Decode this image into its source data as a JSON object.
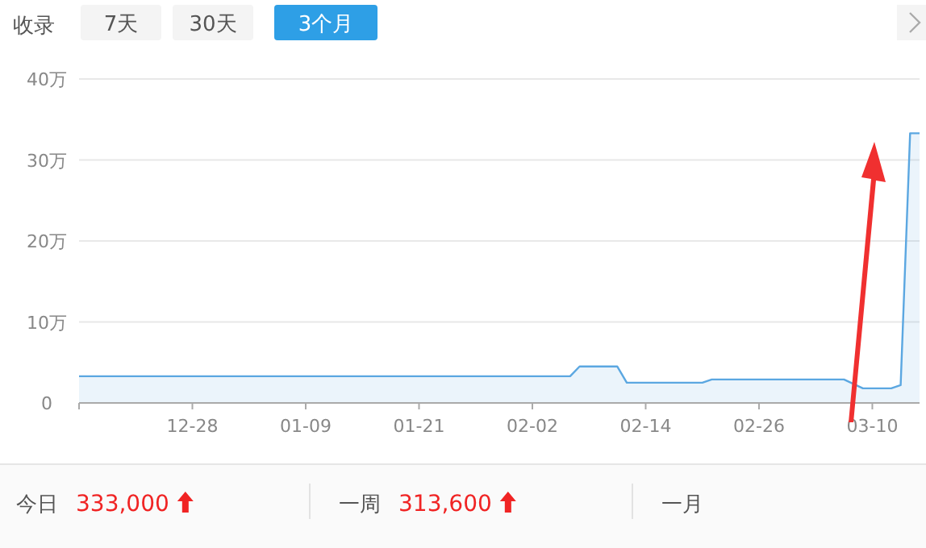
{
  "chart_data": {
    "type": "area",
    "categories": [
      null,
      null,
      null,
      null,
      null,
      null,
      null,
      null,
      null,
      null,
      null,
      null,
      "12-28",
      null,
      null,
      null,
      null,
      null,
      null,
      null,
      null,
      null,
      null,
      null,
      "01-09",
      null,
      null,
      null,
      null,
      null,
      null,
      null,
      null,
      null,
      null,
      null,
      "01-21",
      null,
      null,
      null,
      null,
      null,
      null,
      null,
      null,
      null,
      null,
      null,
      "02-02",
      null,
      null,
      null,
      null,
      null,
      null,
      null,
      null,
      null,
      null,
      null,
      "02-14",
      null,
      null,
      null,
      null,
      null,
      null,
      null,
      null,
      null,
      null,
      null,
      "02-26",
      null,
      null,
      null,
      null,
      null,
      null,
      null,
      null,
      null,
      null,
      null,
      "03-10",
      null,
      null,
      null,
      null,
      null
    ],
    "values": [
      3.3,
      3.3,
      3.3,
      3.3,
      3.3,
      3.3,
      3.3,
      3.3,
      3.3,
      3.3,
      3.3,
      3.3,
      3.3,
      3.3,
      3.3,
      3.3,
      3.3,
      3.3,
      3.3,
      3.3,
      3.3,
      3.3,
      3.3,
      3.3,
      3.3,
      3.3,
      3.3,
      3.3,
      3.3,
      3.3,
      3.3,
      3.3,
      3.3,
      3.3,
      3.3,
      3.3,
      3.3,
      3.3,
      3.3,
      3.3,
      3.3,
      3.3,
      3.3,
      3.3,
      3.3,
      3.3,
      3.3,
      3.3,
      3.3,
      3.3,
      3.3,
      3.3,
      3.3,
      4.5,
      4.5,
      4.5,
      4.5,
      4.5,
      2.5,
      2.5,
      2.5,
      2.5,
      2.5,
      2.5,
      2.5,
      2.5,
      2.5,
      2.9,
      2.9,
      2.9,
      2.9,
      2.9,
      2.9,
      2.9,
      2.9,
      2.9,
      2.9,
      2.9,
      2.9,
      2.9,
      2.9,
      2.9,
      null,
      1.8,
      1.8,
      1.8,
      1.8,
      2.2,
      33.3,
      33.3
    ],
    "color": "#5ba7e1",
    "ylim": [
      0,
      40
    ],
    "yticks": [
      0,
      {
        "value": 10,
        "label": "10万"
      },
      {
        "value": 20,
        "label": "20万"
      },
      {
        "value": 30,
        "label": "30万"
      },
      {
        "value": 40,
        "label": "40万"
      }
    ],
    "grid": "y",
    "annotations": [
      "收录",
      "7天",
      "30天",
      "3个月",
      "今日",
      "333,000",
      "一周",
      "313,600",
      "一月"
    ]
  }
}
